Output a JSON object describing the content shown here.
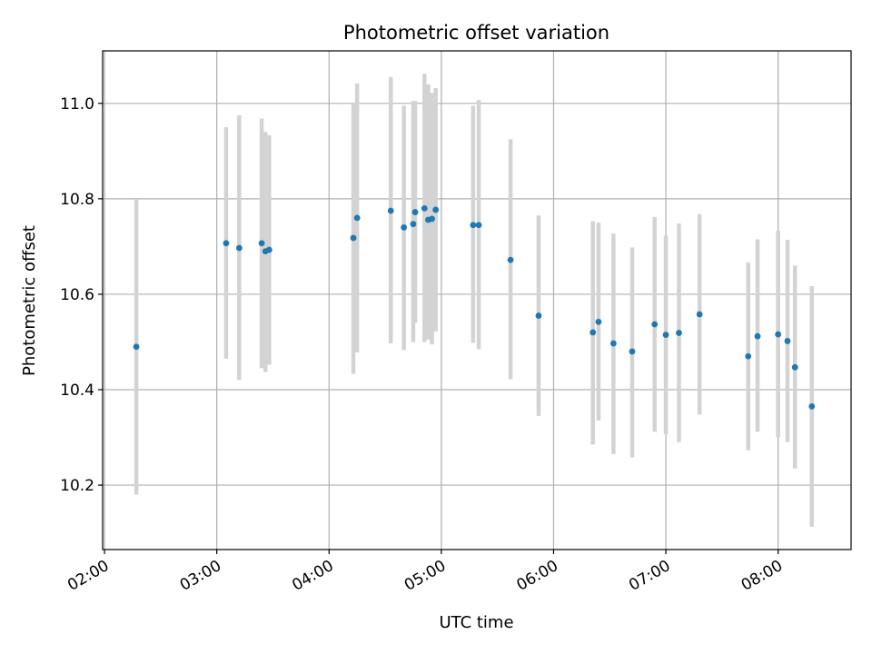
{
  "chart_data": {
    "type": "scatter",
    "title": "Photometric offset variation",
    "xlabel": "UTC time",
    "ylabel": "Photometric offset",
    "x_tick_labels": [
      "02:00",
      "03:00",
      "04:00",
      "05:00",
      "06:00",
      "07:00",
      "08:00"
    ],
    "y_tick_labels": [
      "10.2",
      "10.4",
      "10.6",
      "10.8",
      "11.0"
    ],
    "xlim": [
      "01:59",
      "08:39"
    ],
    "ylim": [
      10.065,
      11.11
    ],
    "grid": true,
    "colors": {
      "point": "#1f77b4",
      "errorbar": "#d3d3d3",
      "grid": "#b0b0b0"
    },
    "series": [
      {
        "points": [
          {
            "x": "02:17",
            "y": 10.49,
            "low": 10.18,
            "high": 10.8
          },
          {
            "x": "03:05",
            "y": 10.707,
            "low": 10.465,
            "high": 10.95
          },
          {
            "x": "03:12",
            "y": 10.697,
            "low": 10.42,
            "high": 10.975
          },
          {
            "x": "03:24",
            "y": 10.707,
            "low": 10.445,
            "high": 10.968
          },
          {
            "x": "03:26",
            "y": 10.69,
            "low": 10.437,
            "high": 10.94
          },
          {
            "x": "03:28",
            "y": 10.693,
            "low": 10.452,
            "high": 10.933
          },
          {
            "x": "04:13",
            "y": 10.718,
            "low": 10.433,
            "high": 11.0
          },
          {
            "x": "04:15",
            "y": 10.76,
            "low": 10.478,
            "high": 11.042
          },
          {
            "x": "04:33",
            "y": 10.775,
            "low": 10.497,
            "high": 11.055
          },
          {
            "x": "04:40",
            "y": 10.74,
            "low": 10.483,
            "high": 10.995
          },
          {
            "x": "04:45",
            "y": 10.747,
            "low": 10.5,
            "high": 11.005
          },
          {
            "x": "04:46",
            "y": 10.772,
            "low": 10.54,
            "high": 11.005
          },
          {
            "x": "04:51",
            "y": 10.78,
            "low": 10.5,
            "high": 11.062
          },
          {
            "x": "04:53",
            "y": 10.756,
            "low": 10.505,
            "high": 11.04
          },
          {
            "x": "04:55",
            "y": 10.758,
            "low": 10.495,
            "high": 11.022
          },
          {
            "x": "04:57",
            "y": 10.777,
            "low": 10.522,
            "high": 11.032
          },
          {
            "x": "05:17",
            "y": 10.745,
            "low": 10.498,
            "high": 10.995
          },
          {
            "x": "05:20",
            "y": 10.745,
            "low": 10.485,
            "high": 11.007
          },
          {
            "x": "05:37",
            "y": 10.672,
            "low": 10.422,
            "high": 10.925
          },
          {
            "x": "05:52",
            "y": 10.555,
            "low": 10.345,
            "high": 10.765
          },
          {
            "x": "06:21",
            "y": 10.52,
            "low": 10.285,
            "high": 10.753
          },
          {
            "x": "06:24",
            "y": 10.542,
            "low": 10.335,
            "high": 10.75
          },
          {
            "x": "06:32",
            "y": 10.497,
            "low": 10.265,
            "high": 10.727
          },
          {
            "x": "06:42",
            "y": 10.48,
            "low": 10.258,
            "high": 10.698
          },
          {
            "x": "06:54",
            "y": 10.537,
            "low": 10.312,
            "high": 10.762
          },
          {
            "x": "07:00",
            "y": 10.515,
            "low": 10.307,
            "high": 10.723
          },
          {
            "x": "07:07",
            "y": 10.519,
            "low": 10.29,
            "high": 10.748
          },
          {
            "x": "07:18",
            "y": 10.558,
            "low": 10.348,
            "high": 10.768
          },
          {
            "x": "07:44",
            "y": 10.47,
            "low": 10.273,
            "high": 10.667
          },
          {
            "x": "07:49",
            "y": 10.512,
            "low": 10.312,
            "high": 10.715
          },
          {
            "x": "08:00",
            "y": 10.516,
            "low": 10.3,
            "high": 10.733
          },
          {
            "x": "08:05",
            "y": 10.502,
            "low": 10.29,
            "high": 10.714
          },
          {
            "x": "08:09",
            "y": 10.447,
            "low": 10.235,
            "high": 10.66
          },
          {
            "x": "08:18",
            "y": 10.365,
            "low": 10.113,
            "high": 10.617
          }
        ]
      }
    ]
  }
}
